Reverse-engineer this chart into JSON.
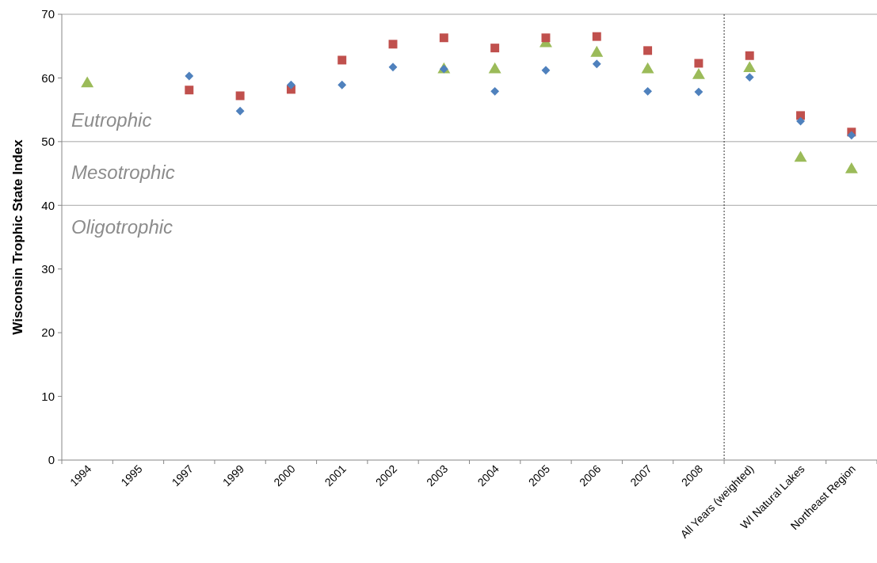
{
  "chart_data": {
    "type": "scatter",
    "ylabel": "Wisconsin Trophic State Index",
    "categories": [
      "1994",
      "1995",
      "1997",
      "1999",
      "2000",
      "2001",
      "2002",
      "2003",
      "2004",
      "2005",
      "2006",
      "2007",
      "2008",
      "All Years (weighted)",
      "WI Natural Lakes",
      "Northeast Region"
    ],
    "ylim": [
      0,
      70
    ],
    "yticks": [
      0,
      10,
      20,
      30,
      40,
      50,
      60,
      70
    ],
    "grid": false,
    "series": [
      {
        "color": "#4f81bd",
        "marker": "diamond",
        "values": [
          null,
          null,
          60.3,
          54.8,
          58.9,
          58.9,
          61.7,
          61.4,
          57.9,
          61.2,
          62.2,
          57.9,
          57.8,
          60.1,
          53.2,
          51.0
        ]
      },
      {
        "color": "#c0504d",
        "marker": "square",
        "values": [
          null,
          null,
          58.1,
          57.2,
          58.2,
          62.8,
          65.3,
          66.3,
          64.7,
          66.3,
          66.5,
          64.3,
          62.3,
          63.5,
          54.1,
          51.5
        ]
      },
      {
        "color": "#9bbb59",
        "marker": "triangle",
        "values": [
          59.1,
          null,
          null,
          null,
          null,
          null,
          null,
          61.3,
          61.3,
          65.4,
          63.9,
          61.3,
          60.4,
          61.5,
          47.4,
          45.6
        ]
      }
    ],
    "ref_lines": [
      {
        "axis": "y",
        "value": 50,
        "color": "#a6a6a6",
        "line_style": "solid"
      },
      {
        "axis": "y",
        "value": 40,
        "color": "#a6a6a6",
        "line_style": "solid"
      }
    ],
    "annotations": [
      "Eutrophic",
      "Mesotrophic",
      "Oligotrophic"
    ]
  }
}
